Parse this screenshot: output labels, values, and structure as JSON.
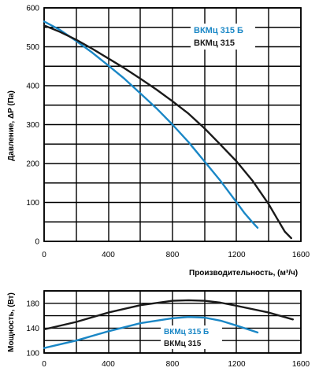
{
  "chart_data": [
    {
      "type": "line",
      "xlabel": "Производительность, (м³/ч)",
      "ylabel": "Давление, ΔP (Па)",
      "xlim": [
        0,
        1600
      ],
      "ylim": [
        0,
        600
      ],
      "x_ticks": [
        "0",
        "400",
        "800",
        "1200",
        "1600"
      ],
      "y_ticks": [
        "0",
        "100",
        "200",
        "300",
        "400",
        "500",
        "600"
      ],
      "grid": true,
      "legend_position": "top-right",
      "series": [
        {
          "name": "ВКМц 315 Б",
          "color": "#1a87c6",
          "x": [
            0,
            100,
            200,
            300,
            400,
            500,
            600,
            700,
            800,
            900,
            1000,
            1100,
            1200,
            1250,
            1300,
            1330
          ],
          "y": [
            565,
            543,
            515,
            485,
            452,
            418,
            380,
            342,
            300,
            255,
            205,
            155,
            100,
            72,
            48,
            35
          ]
        },
        {
          "name": "ВКМц 315",
          "color": "#1a1a1a",
          "x": [
            0,
            100,
            200,
            300,
            400,
            500,
            600,
            700,
            800,
            900,
            1000,
            1100,
            1200,
            1300,
            1400,
            1450,
            1500,
            1540
          ],
          "y": [
            555,
            538,
            518,
            495,
            470,
            445,
            418,
            390,
            360,
            328,
            290,
            248,
            205,
            155,
            95,
            60,
            25,
            8
          ]
        }
      ]
    },
    {
      "type": "line",
      "xlabel": "",
      "ylabel": "Мощность, (Вт)",
      "xlim": [
        0,
        1600
      ],
      "ylim": [
        100,
        200
      ],
      "x_ticks": [
        "0",
        "400",
        "800",
        "1200",
        "1600"
      ],
      "y_ticks": [
        "100",
        "140",
        "180"
      ],
      "grid": true,
      "legend_position": "bottom-center",
      "series": [
        {
          "name": "ВКМц 315 Б",
          "color": "#1a87c6",
          "x": [
            0,
            200,
            400,
            600,
            800,
            900,
            1000,
            1100,
            1200,
            1330
          ],
          "y": [
            108,
            120,
            135,
            148,
            156,
            158,
            157,
            152,
            144,
            133
          ]
        },
        {
          "name": "ВКМц 315",
          "color": "#1a1a1a",
          "x": [
            0,
            200,
            400,
            600,
            800,
            900,
            1000,
            1100,
            1200,
            1400,
            1550
          ],
          "y": [
            138,
            150,
            165,
            177,
            184,
            185,
            184,
            181,
            176,
            165,
            154
          ]
        }
      ]
    }
  ]
}
